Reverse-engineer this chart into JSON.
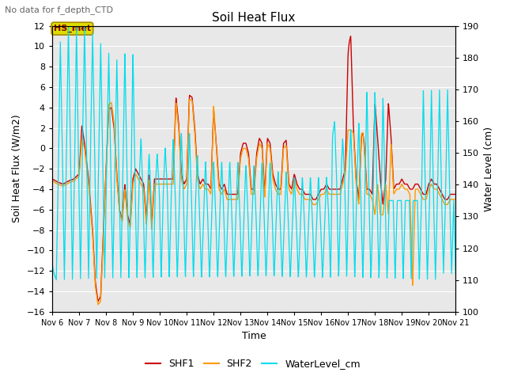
{
  "title": "Soil Heat Flux",
  "subtitle": "No data for f_depth_CTD",
  "xlabel": "Time",
  "ylabel_left": "Soil Heat Flux (W/m2)",
  "ylabel_right": "Water Level (cm)",
  "ylim_left": [
    -16,
    12
  ],
  "ylim_right": [
    100,
    190
  ],
  "yticks_left": [
    -16,
    -14,
    -12,
    -10,
    -8,
    -6,
    -4,
    -2,
    0,
    2,
    4,
    6,
    8,
    10,
    12
  ],
  "yticks_right": [
    100,
    110,
    120,
    130,
    140,
    150,
    160,
    170,
    180,
    190
  ],
  "background_color": "#e8e8e8",
  "shf1_color": "#cc0000",
  "shf2_color": "#ff9900",
  "wl_color": "#00ddee",
  "x_start": 6.0,
  "x_end": 21.0,
  "xtick_positions": [
    6,
    7,
    8,
    9,
    10,
    11,
    12,
    13,
    14,
    15,
    16,
    17,
    18,
    19,
    20,
    21
  ],
  "xtick_labels": [
    "Nov 6",
    "Nov 7",
    "Nov 8",
    "Nov 9",
    "Nov 10",
    "Nov 11",
    "Nov 12",
    "Nov 13",
    "Nov 14",
    "Nov 15",
    "Nov 16",
    "Nov 17",
    "Nov 18",
    "Nov 19",
    "Nov 20",
    "Nov 21"
  ],
  "legend_box_label": "HS_met",
  "legend_box_facecolor": "#dddd00",
  "legend_box_edgecolor": "#aa8800",
  "legend_box_textcolor": "#880000"
}
